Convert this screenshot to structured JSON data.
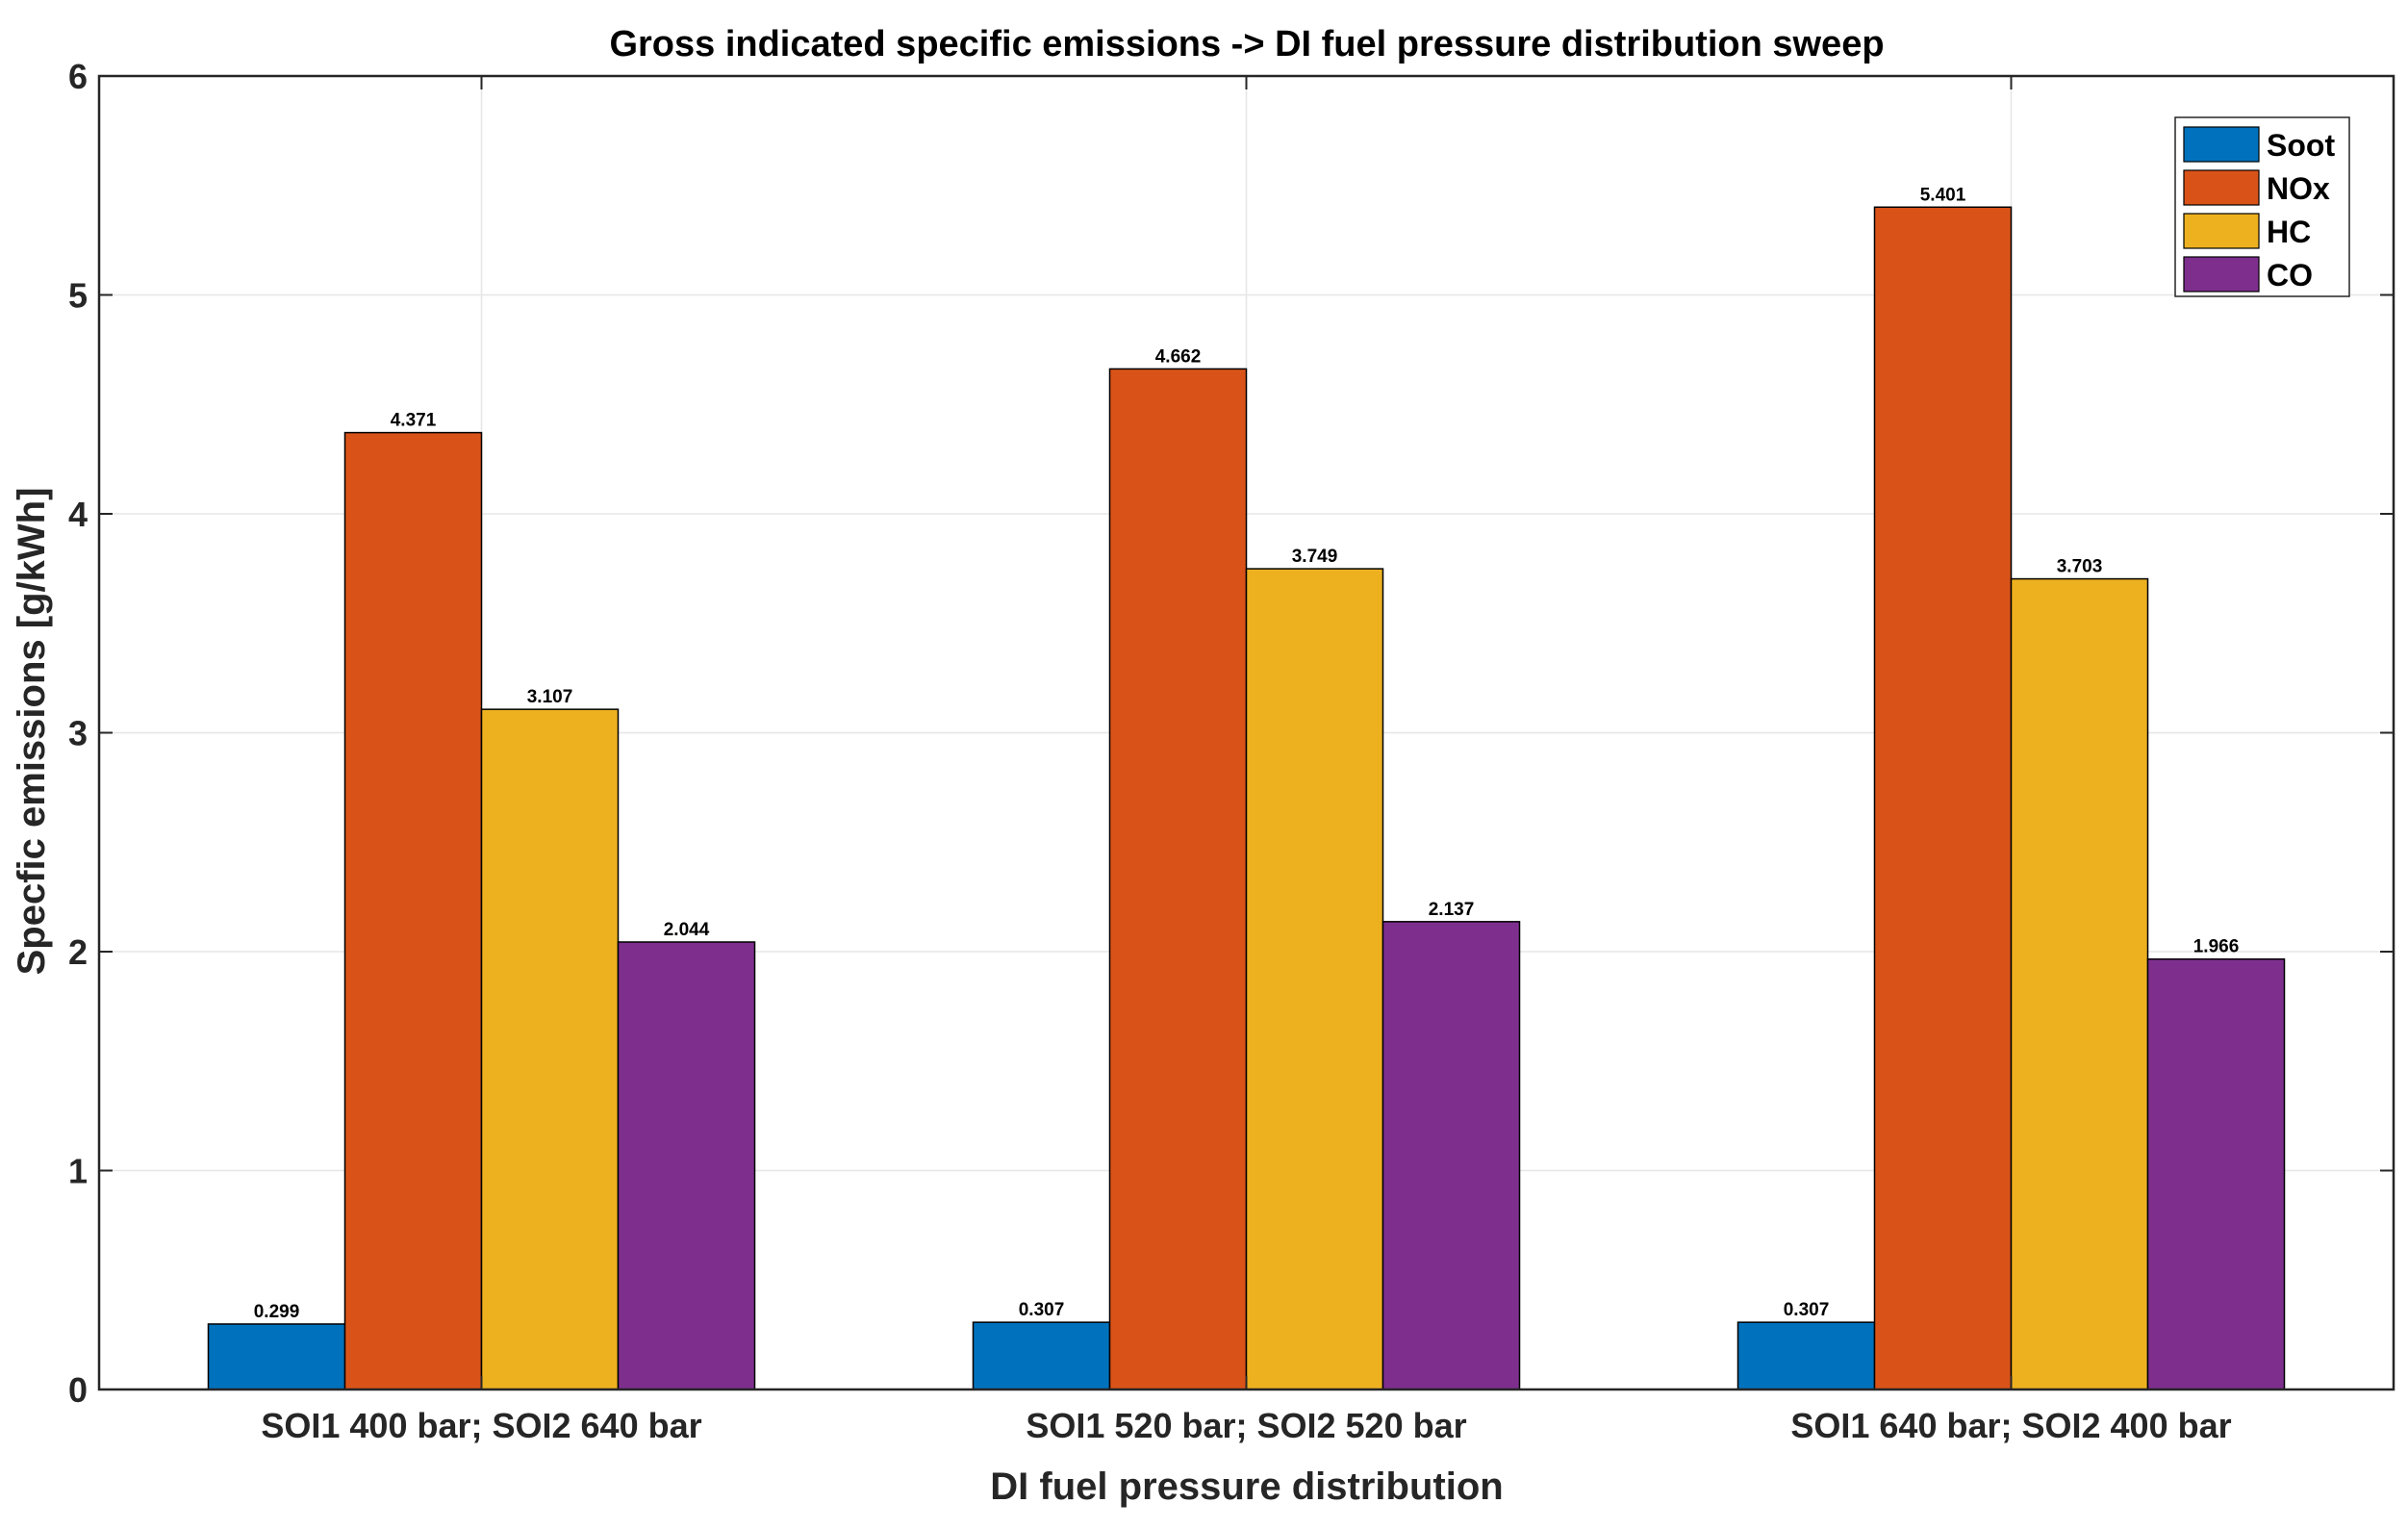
{
  "chart_data": {
    "type": "bar",
    "title": "Gross indicated specific emissions -> DI fuel pressure distribution sweep",
    "xlabel": "DI fuel pressure distribution",
    "ylabel": "Specfic emissions [g/kWh]",
    "categories": [
      "SOI1 400 bar; SOI2 640 bar",
      "SOI1 520 bar; SOI2 520 bar",
      "SOI1 640 bar; SOI2 400 bar"
    ],
    "series": [
      {
        "name": "Soot",
        "color": "#0072BD",
        "values": [
          0.299,
          0.307,
          0.307
        ],
        "labels": [
          "0.299",
          "0.307",
          "0.307"
        ]
      },
      {
        "name": "NOx",
        "color": "#D95319",
        "values": [
          4.371,
          4.662,
          5.401
        ],
        "labels": [
          "4.371",
          "4.662",
          "5.401"
        ]
      },
      {
        "name": "HC",
        "color": "#EDB120",
        "values": [
          3.107,
          3.749,
          3.703
        ],
        "labels": [
          "3.107",
          "3.749",
          "3.703"
        ]
      },
      {
        "name": "CO",
        "color": "#7E2F8E",
        "values": [
          2.044,
          2.137,
          1.966
        ],
        "labels": [
          "2.044",
          "2.137",
          "1.966"
        ]
      }
    ],
    "ylim": [
      0,
      6
    ],
    "yticks": [
      "0",
      "1",
      "2",
      "3",
      "4",
      "5",
      "6"
    ],
    "grid": true,
    "legend_position": "top-right"
  }
}
